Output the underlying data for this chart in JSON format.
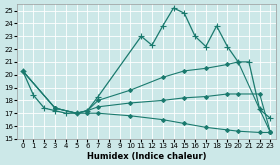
{
  "xlabel": "Humidex (Indice chaleur)",
  "xlim": [
    -0.5,
    23.5
  ],
  "ylim": [
    15,
    25.5
  ],
  "yticks": [
    15,
    16,
    17,
    18,
    19,
    20,
    21,
    22,
    23,
    24,
    25
  ],
  "xticks": [
    0,
    1,
    2,
    3,
    4,
    5,
    6,
    7,
    8,
    9,
    10,
    11,
    12,
    13,
    14,
    15,
    16,
    17,
    18,
    19,
    20,
    21,
    22,
    23
  ],
  "bg_color": "#cce8e8",
  "grid_color": "#ffffff",
  "line_color": "#1a7a6e",
  "lines": [
    {
      "x": [
        0,
        1,
        2,
        3,
        4,
        5,
        6,
        7,
        11,
        12,
        13,
        14,
        15,
        16,
        17,
        18,
        19,
        20,
        21,
        22,
        23
      ],
      "y": [
        20.3,
        18.4,
        17.4,
        17.2,
        17.0,
        17.0,
        17.2,
        18.3,
        23.0,
        22.3,
        23.8,
        25.2,
        24.8,
        23.0,
        22.2,
        23.8,
        22.2,
        21.0,
        21.0,
        17.3,
        16.6
      ],
      "marker": "+",
      "markersize": 4.5,
      "linewidth": 0.9
    },
    {
      "x": [
        0,
        3,
        5,
        6,
        7,
        10,
        13,
        15,
        17,
        19,
        20,
        22,
        23
      ],
      "y": [
        20.3,
        17.4,
        17.0,
        17.2,
        18.0,
        18.8,
        19.8,
        20.3,
        20.5,
        20.8,
        21.0,
        17.3,
        15.5
      ],
      "marker": "D",
      "markersize": 2.0,
      "linewidth": 0.8
    },
    {
      "x": [
        0,
        3,
        5,
        6,
        7,
        10,
        13,
        15,
        17,
        19,
        20,
        22,
        23
      ],
      "y": [
        20.3,
        17.4,
        17.0,
        17.2,
        17.5,
        17.8,
        18.0,
        18.2,
        18.3,
        18.5,
        18.5,
        18.5,
        15.5
      ],
      "marker": "D",
      "markersize": 2.0,
      "linewidth": 0.8
    },
    {
      "x": [
        0,
        3,
        5,
        6,
        7,
        10,
        13,
        15,
        17,
        19,
        20,
        22,
        23
      ],
      "y": [
        20.3,
        17.4,
        17.0,
        17.0,
        17.0,
        16.8,
        16.5,
        16.2,
        15.9,
        15.7,
        15.6,
        15.5,
        15.5
      ],
      "marker": "D",
      "markersize": 2.0,
      "linewidth": 0.8
    }
  ]
}
